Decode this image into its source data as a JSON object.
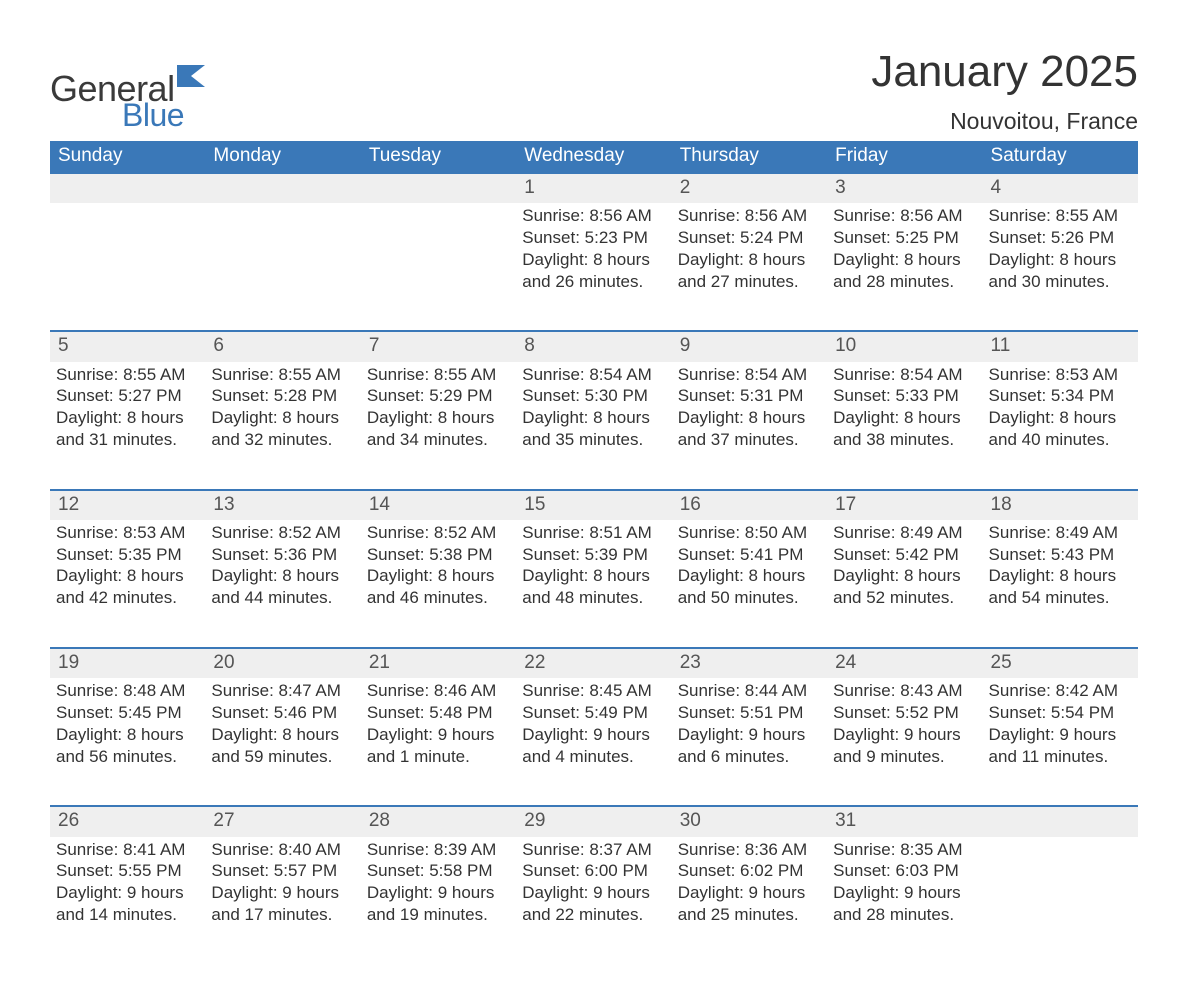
{
  "logo": {
    "word1": "General",
    "word2": "Blue",
    "word1_color": "#3a3a3a",
    "word2_color": "#3a78b8"
  },
  "title": "January 2025",
  "location": "Nouvoitou, France",
  "colors": {
    "header_bg": "#3a78b8",
    "header_text": "#ffffff",
    "daynum_bg": "#efefef",
    "daynum_border": "#3a78b8",
    "body_text": "#333333",
    "page_bg": "#ffffff"
  },
  "fonts": {
    "title_size_pt": 33,
    "location_size_pt": 17,
    "header_size_pt": 14,
    "cell_size_pt": 13
  },
  "layout": {
    "columns": 7,
    "rows": 5,
    "first_day_column": 3
  },
  "weekdays": [
    "Sunday",
    "Monday",
    "Tuesday",
    "Wednesday",
    "Thursday",
    "Friday",
    "Saturday"
  ],
  "days": [
    {
      "n": 1,
      "sunrise": "8:56 AM",
      "sunset": "5:23 PM",
      "daylight": "8 hours and 26 minutes."
    },
    {
      "n": 2,
      "sunrise": "8:56 AM",
      "sunset": "5:24 PM",
      "daylight": "8 hours and 27 minutes."
    },
    {
      "n": 3,
      "sunrise": "8:56 AM",
      "sunset": "5:25 PM",
      "daylight": "8 hours and 28 minutes."
    },
    {
      "n": 4,
      "sunrise": "8:55 AM",
      "sunset": "5:26 PM",
      "daylight": "8 hours and 30 minutes."
    },
    {
      "n": 5,
      "sunrise": "8:55 AM",
      "sunset": "5:27 PM",
      "daylight": "8 hours and 31 minutes."
    },
    {
      "n": 6,
      "sunrise": "8:55 AM",
      "sunset": "5:28 PM",
      "daylight": "8 hours and 32 minutes."
    },
    {
      "n": 7,
      "sunrise": "8:55 AM",
      "sunset": "5:29 PM",
      "daylight": "8 hours and 34 minutes."
    },
    {
      "n": 8,
      "sunrise": "8:54 AM",
      "sunset": "5:30 PM",
      "daylight": "8 hours and 35 minutes."
    },
    {
      "n": 9,
      "sunrise": "8:54 AM",
      "sunset": "5:31 PM",
      "daylight": "8 hours and 37 minutes."
    },
    {
      "n": 10,
      "sunrise": "8:54 AM",
      "sunset": "5:33 PM",
      "daylight": "8 hours and 38 minutes."
    },
    {
      "n": 11,
      "sunrise": "8:53 AM",
      "sunset": "5:34 PM",
      "daylight": "8 hours and 40 minutes."
    },
    {
      "n": 12,
      "sunrise": "8:53 AM",
      "sunset": "5:35 PM",
      "daylight": "8 hours and 42 minutes."
    },
    {
      "n": 13,
      "sunrise": "8:52 AM",
      "sunset": "5:36 PM",
      "daylight": "8 hours and 44 minutes."
    },
    {
      "n": 14,
      "sunrise": "8:52 AM",
      "sunset": "5:38 PM",
      "daylight": "8 hours and 46 minutes."
    },
    {
      "n": 15,
      "sunrise": "8:51 AM",
      "sunset": "5:39 PM",
      "daylight": "8 hours and 48 minutes."
    },
    {
      "n": 16,
      "sunrise": "8:50 AM",
      "sunset": "5:41 PM",
      "daylight": "8 hours and 50 minutes."
    },
    {
      "n": 17,
      "sunrise": "8:49 AM",
      "sunset": "5:42 PM",
      "daylight": "8 hours and 52 minutes."
    },
    {
      "n": 18,
      "sunrise": "8:49 AM",
      "sunset": "5:43 PM",
      "daylight": "8 hours and 54 minutes."
    },
    {
      "n": 19,
      "sunrise": "8:48 AM",
      "sunset": "5:45 PM",
      "daylight": "8 hours and 56 minutes."
    },
    {
      "n": 20,
      "sunrise": "8:47 AM",
      "sunset": "5:46 PM",
      "daylight": "8 hours and 59 minutes."
    },
    {
      "n": 21,
      "sunrise": "8:46 AM",
      "sunset": "5:48 PM",
      "daylight": "9 hours and 1 minute."
    },
    {
      "n": 22,
      "sunrise": "8:45 AM",
      "sunset": "5:49 PM",
      "daylight": "9 hours and 4 minutes."
    },
    {
      "n": 23,
      "sunrise": "8:44 AM",
      "sunset": "5:51 PM",
      "daylight": "9 hours and 6 minutes."
    },
    {
      "n": 24,
      "sunrise": "8:43 AM",
      "sunset": "5:52 PM",
      "daylight": "9 hours and 9 minutes."
    },
    {
      "n": 25,
      "sunrise": "8:42 AM",
      "sunset": "5:54 PM",
      "daylight": "9 hours and 11 minutes."
    },
    {
      "n": 26,
      "sunrise": "8:41 AM",
      "sunset": "5:55 PM",
      "daylight": "9 hours and 14 minutes."
    },
    {
      "n": 27,
      "sunrise": "8:40 AM",
      "sunset": "5:57 PM",
      "daylight": "9 hours and 17 minutes."
    },
    {
      "n": 28,
      "sunrise": "8:39 AM",
      "sunset": "5:58 PM",
      "daylight": "9 hours and 19 minutes."
    },
    {
      "n": 29,
      "sunrise": "8:37 AM",
      "sunset": "6:00 PM",
      "daylight": "9 hours and 22 minutes."
    },
    {
      "n": 30,
      "sunrise": "8:36 AM",
      "sunset": "6:02 PM",
      "daylight": "9 hours and 25 minutes."
    },
    {
      "n": 31,
      "sunrise": "8:35 AM",
      "sunset": "6:03 PM",
      "daylight": "9 hours and 28 minutes."
    }
  ],
  "labels": {
    "sunrise": "Sunrise: ",
    "sunset": "Sunset: ",
    "daylight": "Daylight: "
  }
}
